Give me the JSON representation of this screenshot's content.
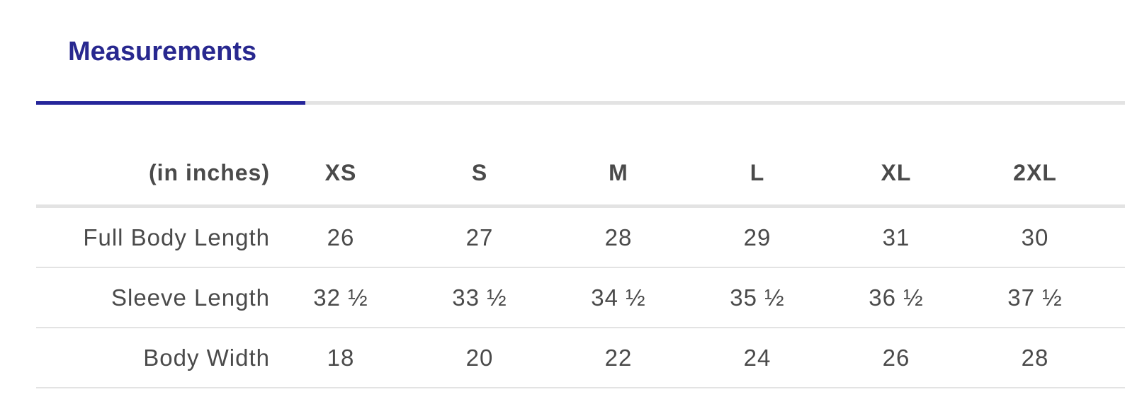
{
  "tabs": [
    {
      "label": "Measurements",
      "active": true
    }
  ],
  "colors": {
    "accent": "#25259a",
    "tab_text": "#28288f",
    "text": "#4a4a4a",
    "divider": "#e3e3e3"
  },
  "table": {
    "unit_label": "(in inches)",
    "sizes": [
      "XS",
      "S",
      "M",
      "L",
      "XL",
      "2XL"
    ],
    "rows": [
      {
        "label": "Full Body Length",
        "values": [
          "26",
          "27",
          "28",
          "29",
          "31",
          "30"
        ]
      },
      {
        "label": "Sleeve Length",
        "values": [
          "32 ½",
          "33 ½",
          "34 ½",
          "35 ½",
          "36 ½",
          "37 ½"
        ]
      },
      {
        "label": "Body Width",
        "values": [
          "18",
          "20",
          "22",
          "24",
          "26",
          "28"
        ]
      }
    ]
  }
}
